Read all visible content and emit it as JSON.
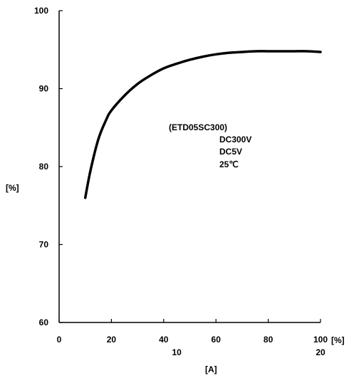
{
  "chart_data": {
    "type": "line",
    "title": "",
    "ylabel": "[%]",
    "xlabel": "[%]",
    "x_unit_secondary": "[A]",
    "xlim": [
      0,
      100
    ],
    "ylim": [
      60,
      100
    ],
    "x_ticks": [
      "0",
      "20",
      "40",
      "60",
      "80",
      "100"
    ],
    "y_ticks": [
      "60",
      "70",
      "80",
      "90",
      "100"
    ],
    "x_ticks_secondary": [
      {
        "at": 45,
        "label": "10"
      },
      {
        "at": 100,
        "label": "20"
      }
    ],
    "grid": false,
    "annotations": [
      "(ETD05SC300)",
      "DC300V",
      "DC5V",
      "25℃"
    ],
    "series": [
      {
        "x": [
          10,
          12,
          15,
          18,
          20,
          25,
          30,
          35,
          40,
          45,
          50,
          55,
          60,
          65,
          70,
          75,
          80,
          85,
          90,
          95,
          100
        ],
        "y": [
          76.0,
          79.5,
          83.5,
          86.0,
          87.2,
          89.1,
          90.6,
          91.7,
          92.6,
          93.2,
          93.7,
          94.1,
          94.4,
          94.6,
          94.7,
          94.8,
          94.8,
          94.8,
          94.8,
          94.8,
          94.7
        ]
      }
    ]
  }
}
